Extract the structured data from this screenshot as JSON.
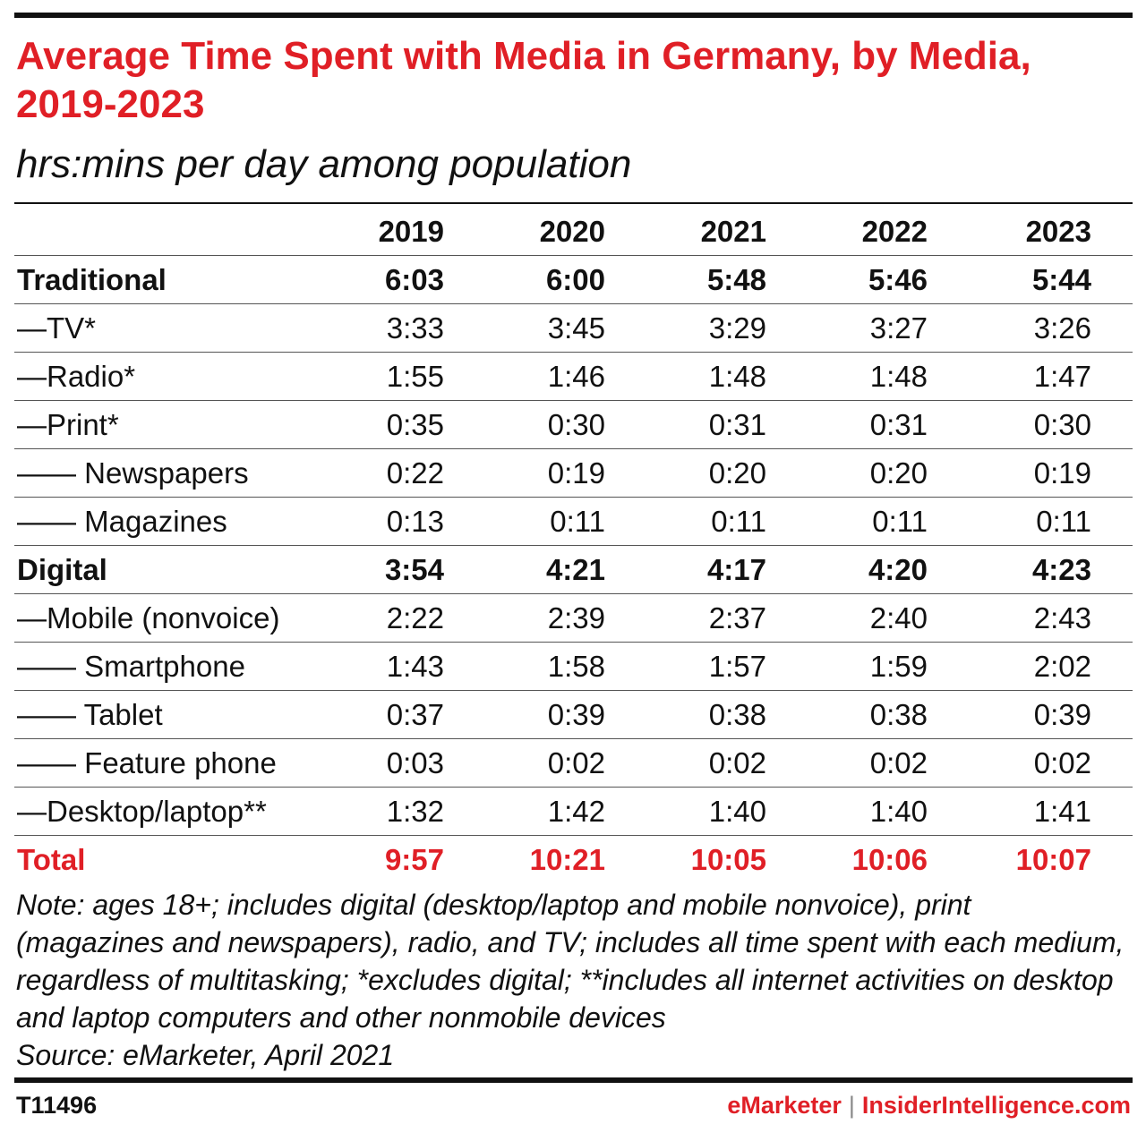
{
  "colors": {
    "accent": "#e01f26",
    "text": "#111111"
  },
  "chart_data": {
    "type": "table",
    "title": "Average Time Spent with Media in Germany, by Media, 2019-2023",
    "subtitle": "hrs:mins per day among population",
    "columns": [
      "2019",
      "2020",
      "2021",
      "2022",
      "2023"
    ],
    "rows": [
      {
        "label": "Traditional",
        "values": [
          "6:03",
          "6:00",
          "5:48",
          "5:46",
          "5:44"
        ],
        "style": "bold"
      },
      {
        "label": "—TV*",
        "values": [
          "3:33",
          "3:45",
          "3:29",
          "3:27",
          "3:26"
        ],
        "style": "normal"
      },
      {
        "label": "—Radio*",
        "values": [
          "1:55",
          "1:46",
          "1:48",
          "1:48",
          "1:47"
        ],
        "style": "normal"
      },
      {
        "label": "—Print*",
        "values": [
          "0:35",
          "0:30",
          "0:31",
          "0:31",
          "0:30"
        ],
        "style": "normal"
      },
      {
        "label": "—— Newspapers",
        "values": [
          "0:22",
          "0:19",
          "0:20",
          "0:20",
          "0:19"
        ],
        "style": "normal"
      },
      {
        "label": "—— Magazines",
        "values": [
          "0:13",
          "0:11",
          "0:11",
          "0:11",
          "0:11"
        ],
        "style": "normal"
      },
      {
        "label": "Digital",
        "values": [
          "3:54",
          "4:21",
          "4:17",
          "4:20",
          "4:23"
        ],
        "style": "bold"
      },
      {
        "label": "—Mobile (nonvoice)",
        "values": [
          "2:22",
          "2:39",
          "2:37",
          "2:40",
          "2:43"
        ],
        "style": "normal"
      },
      {
        "label": "—— Smartphone",
        "values": [
          "1:43",
          "1:58",
          "1:57",
          "1:59",
          "2:02"
        ],
        "style": "normal"
      },
      {
        "label": "—— Tablet",
        "values": [
          "0:37",
          "0:39",
          "0:38",
          "0:38",
          "0:39"
        ],
        "style": "normal"
      },
      {
        "label": "—— Feature phone",
        "values": [
          "0:03",
          "0:02",
          "0:02",
          "0:02",
          "0:02"
        ],
        "style": "normal"
      },
      {
        "label": "—Desktop/laptop**",
        "values": [
          "1:32",
          "1:42",
          "1:40",
          "1:40",
          "1:41"
        ],
        "style": "normal"
      },
      {
        "label": "Total",
        "values": [
          "9:57",
          "10:21",
          "10:05",
          "10:06",
          "10:07"
        ],
        "style": "total"
      }
    ]
  },
  "notes": {
    "note": "Note: ages 18+; includes digital (desktop/laptop and mobile nonvoice), print (magazines and newspapers), radio, and TV; includes all time spent with each medium, regardless of multitasking; *excludes digital; **includes all internet activities on desktop and laptop computers and other nonmobile devices",
    "source": "Source: eMarketer, April 2021"
  },
  "footer": {
    "chart_id": "T11496",
    "brand_primary": "eMarketer",
    "separator": "|",
    "brand_secondary": "InsiderIntelligence.com"
  }
}
